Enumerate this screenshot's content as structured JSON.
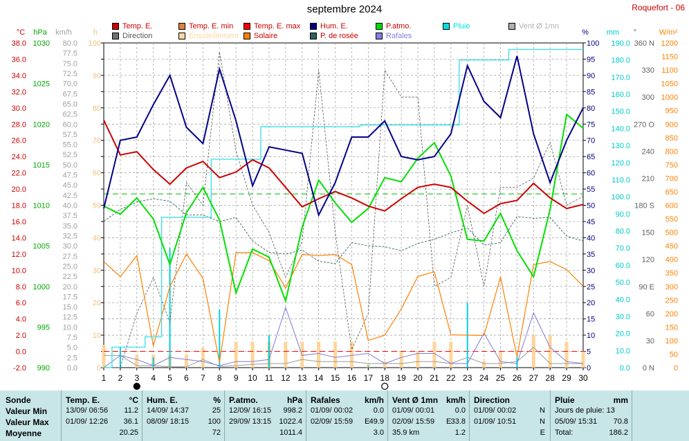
{
  "header": {
    "title": "septembre 2024",
    "station": "Roquefort - 06"
  },
  "legend": [
    {
      "label": "Temp. E.",
      "color": "#cc0000"
    },
    {
      "label": "Temp. E. min",
      "color": "#e08040"
    },
    {
      "label": "Temp. E. max",
      "color": "#ff0000"
    },
    {
      "label": "Hum. E.",
      "color": "#000080"
    },
    {
      "label": "P.atmo.",
      "color": "#00dd00"
    },
    {
      "label": "Pluie",
      "color": "#00e0e0"
    },
    {
      "label": "Vent Ø 1mn",
      "color": "#b0b0b0"
    },
    {
      "label": "Direction",
      "color": "#707070"
    },
    {
      "label": "Ensoleillement",
      "color": "#ffd8a0"
    },
    {
      "label": "Solaire",
      "color": "#ff8000"
    },
    {
      "label": "P. de rosée",
      "color": "#306060"
    },
    {
      "label": "Rafales",
      "color": "#8080e0"
    }
  ],
  "axes": {
    "temp": {
      "unit": "°C",
      "ticks": [
        "-2.0",
        "0.0",
        "2.0",
        "4.0",
        "6.0",
        "8.0",
        "10.0",
        "12.0",
        "14.0",
        "16.0",
        "18.0",
        "20.0",
        "22.0",
        "24.0",
        "26.0",
        "28.0",
        "30.0",
        "32.0",
        "34.0",
        "36.0",
        "38.0"
      ],
      "color": "#cc0000"
    },
    "pressure": {
      "unit": "hPa",
      "ticks": [
        "990",
        "995",
        "1000",
        "1005",
        "1010",
        "1015",
        "1020",
        "1025",
        "1030"
      ],
      "color": "#00aa00"
    },
    "wind": {
      "unit": "km/h",
      "ticks": [
        "0.0",
        "2.5",
        "5.0",
        "7.5",
        "10.0",
        "12.5",
        "15.0",
        "17.5",
        "20.0",
        "22.5",
        "25.0",
        "27.5",
        "30.0",
        "32.5",
        "35.0",
        "37.5",
        "40.0",
        "42.5",
        "45.0",
        "47.5",
        "50.0",
        "52.5",
        "55.0",
        "57.5",
        "60.0",
        "62.5",
        "65.0",
        "67.5",
        "70.0",
        "72.5",
        "75.0",
        "77.5",
        "80.0"
      ],
      "color": "#a0a0a0"
    },
    "sun": {
      "unit": "h",
      "ticks": [
        "0",
        "10",
        "20",
        "30",
        "40",
        "50",
        "60",
        "70",
        "80",
        "90",
        "100"
      ],
      "color": "#f0c080"
    },
    "humidity": {
      "unit": "%",
      "ticks": [
        "0",
        "5",
        "10",
        "15",
        "20",
        "25",
        "30",
        "35",
        "40",
        "45",
        "50",
        "55",
        "60",
        "65",
        "70",
        "75",
        "80",
        "85",
        "90",
        "95",
        "100"
      ],
      "color": "#000080"
    },
    "rain": {
      "unit": "mm",
      "ticks": [
        "0.0",
        "10.0",
        "20.0",
        "30.0",
        "40.0",
        "50.0",
        "60.0",
        "70.0",
        "80.0",
        "90.0",
        "100.0",
        "110.0",
        "120.0",
        "130.0",
        "140.0",
        "150.0",
        "160.0",
        "170.0",
        "180.0",
        "190.0"
      ],
      "color": "#00c8c8"
    },
    "direction": {
      "unit": "°",
      "ticks": [
        "0 N",
        "30",
        "60",
        "90 E",
        "120",
        "150",
        "180 S",
        "210",
        "240",
        "270 O",
        "300",
        "330",
        "360 N"
      ],
      "color": "#606060"
    },
    "solar": {
      "unit": "W/m²",
      "ticks": [
        "0",
        "50",
        "100",
        "150",
        "200",
        "250",
        "300",
        "350",
        "400",
        "450",
        "500",
        "550",
        "600",
        "650",
        "700",
        "750",
        "800",
        "850",
        "900",
        "950",
        "1000",
        "1050",
        "1100",
        "1150",
        "1200"
      ],
      "color": "#ff8000"
    },
    "days": [
      "1",
      "2",
      "3",
      "4",
      "5",
      "6",
      "7",
      "8",
      "9",
      "10",
      "11",
      "12",
      "13",
      "14",
      "15",
      "16",
      "17",
      "18",
      "19",
      "20",
      "21",
      "22",
      "23",
      "24",
      "25",
      "26",
      "27",
      "28",
      "29",
      "30"
    ]
  },
  "chart_data": {
    "type": "line",
    "title": "septembre 2024",
    "x": [
      1,
      2,
      3,
      4,
      5,
      6,
      7,
      8,
      9,
      10,
      11,
      12,
      13,
      14,
      15,
      16,
      17,
      18,
      19,
      20,
      21,
      22,
      23,
      24,
      25,
      26,
      27,
      28,
      29,
      30
    ],
    "xlim": [
      1,
      30
    ],
    "grid": true,
    "legend_position": "top",
    "series": [
      {
        "name": "Temp. E.",
        "unit": "°C",
        "values": [
          28.5,
          24.2,
          24.6,
          22.4,
          20.6,
          22.6,
          23.4,
          21.4,
          22.1,
          23.6,
          22.6,
          20.2,
          17.8,
          18.8,
          19.7,
          18.9,
          17.9,
          17.3,
          18.8,
          20.2,
          20.6,
          20.2,
          18.5,
          17.0,
          18.2,
          18.6,
          20.7,
          18.9,
          17.6,
          18.1
        ]
      },
      {
        "name": "Hum. E.",
        "unit": "%",
        "values": [
          49,
          70,
          71,
          81,
          90,
          74,
          69,
          92,
          76,
          56,
          68,
          67,
          66,
          47,
          57,
          71,
          71,
          76,
          65,
          64,
          65,
          72,
          93,
          82,
          77,
          96,
          72,
          57,
          70,
          80
        ]
      },
      {
        "name": "P.atmo.",
        "unit": "hPa",
        "values": [
          1009.9,
          1008.9,
          1010.9,
          1008.3,
          1002.7,
          1009.1,
          1012.2,
          1008.2,
          999.2,
          1004.6,
          1003.6,
          998.2,
          1007.3,
          1013.1,
          1010.3,
          1007.9,
          1009.6,
          1013.4,
          1012.9,
          1015.8,
          1017.7,
          1013.6,
          1005.8,
          1005.6,
          1009.0,
          1004.4,
          1001.2,
          1009.5,
          1021.2,
          1019.5
        ]
      },
      {
        "name": "Pluie",
        "unit": "mm",
        "values": [
          0,
          12,
          12,
          18,
          88,
          88,
          88,
          122,
          122,
          122,
          141,
          141,
          141,
          141,
          141,
          141,
          142,
          142,
          142,
          142,
          142,
          142,
          180,
          180,
          180,
          186.2,
          186.2,
          186.2,
          186.2,
          186.2
        ]
      },
      {
        "name": "Solaire",
        "unit": "W/m²",
        "values": [
          392,
          336,
          414,
          80,
          300,
          420,
          330,
          20,
          425,
          425,
          395,
          295,
          418,
          414,
          418,
          381,
          100,
          120,
          217,
          337,
          354,
          121,
          120,
          119,
          335,
          39,
          381,
          392,
          362,
          301
        ]
      },
      {
        "name": "P. de rosée",
        "unit": "°C",
        "values": [
          16.0,
          17.5,
          18.4,
          18.8,
          18.5,
          16.8,
          16.8,
          16.0,
          16.5,
          13.6,
          12.2,
          12.0,
          12.5,
          11.1,
          10.8,
          13.4,
          13.0,
          12.9,
          12.4,
          13.3,
          13.8,
          14.6,
          15.2,
          13.1,
          13.4,
          16.6,
          16.4,
          16.5,
          14.2,
          13.6
        ]
      },
      {
        "name": "Vent Ø 1mn",
        "unit": "km/h",
        "values": [
          3.0,
          3.0,
          0.5,
          0.5,
          0.2,
          0.2,
          2.0,
          0.3,
          0.5,
          0.8,
          1.0,
          1.0,
          2.0,
          1.5,
          1.5,
          1.5,
          1.0,
          1.0,
          1.0,
          1.5,
          1.5,
          1.0,
          2.5,
          1.0,
          1.0,
          1.5,
          5.0,
          1.0,
          1.0,
          1.0
        ]
      },
      {
        "name": "Rafales",
        "unit": "km/h",
        "values": [
          0,
          3.0,
          2.0,
          0.5,
          2.5,
          2.0,
          1.5,
          0.5,
          1.5,
          1.5,
          2.0,
          14.8,
          3.0,
          3.5,
          2.5,
          3.0,
          3.5,
          1.0,
          2.5,
          3.5,
          3.5,
          1.0,
          1.0,
          8.5,
          1.5,
          1.0,
          13.5,
          5.0,
          1.5,
          1.0
        ]
      },
      {
        "name": "Direction",
        "unit": "°",
        "values": [
          0,
          0,
          60,
          100,
          50,
          205,
          180,
          350,
          240,
          180,
          150,
          100,
          140,
          330,
          150,
          20,
          60,
          330,
          300,
          300,
          90,
          100,
          180,
          90,
          200,
          200,
          210,
          250,
          180,
          190
        ]
      }
    ],
    "bars": {
      "name": "Ensoleillement",
      "unit": "h",
      "values": [
        7,
        0,
        4,
        4,
        4,
        4,
        6,
        0,
        8,
        8,
        8,
        8,
        8,
        8,
        8,
        8,
        1,
        2,
        5,
        5,
        8,
        8,
        0,
        2,
        5,
        0,
        10,
        10,
        8,
        5
      ]
    },
    "references": [
      {
        "name": "P.atmo. moyenne",
        "unit": "hPa",
        "value": 1011.4,
        "style": "dashed",
        "color": "#00bb00"
      },
      {
        "name": "Temp. 0°C",
        "unit": "°C",
        "value": 0.0,
        "style": "dashed",
        "color": "#ff0000"
      }
    ],
    "markers": [
      {
        "day": 3,
        "symbol": "new-moon"
      },
      {
        "day": 18,
        "symbol": "full-moon"
      }
    ]
  },
  "stats": {
    "rows": [
      "Sonde",
      "Valeur Min",
      "Valeur Max",
      "Moyenne"
    ],
    "temp": {
      "title": "Temp. E.",
      "unit": "°C",
      "min_date": "13/09/ 06:56",
      "min": "11.2",
      "max_date": "01/09/ 12:26",
      "max": "36.1",
      "avg": "20.25"
    },
    "hum": {
      "title": "Hum. E.",
      "unit": "%",
      "min_date": "14/09/ 14:37",
      "min": "25",
      "max_date": "08/09/ 18:15",
      "max": "100",
      "avg": "72"
    },
    "press": {
      "title": "P.atmo.",
      "unit": "hPa",
      "min_date": "12/09/ 16:15",
      "min": "998.2",
      "max_date": "29/09/ 13:15",
      "max": "1022.4",
      "avg": "1011.4"
    },
    "gust": {
      "title": "Rafales",
      "unit": "km/h",
      "min_date": "01/09/ 00:02",
      "min": "0.0",
      "max_date": "02/09/ 15:59",
      "max_dir": "E",
      "max": "49.9",
      "avg": "3.0"
    },
    "wind": {
      "title": "Vent Ø 1mn",
      "unit": "km/h",
      "min_date": "01/09/ 00:01",
      "min": "0.0",
      "max_date": "02/09/ 15:59",
      "max_dir": "E",
      "max": "33.8",
      "dist": "35.9 km",
      "avg": "1.2"
    },
    "dir": {
      "title": "Direction",
      "min_date": "01/09/ 00:02",
      "min_dir": "N",
      "max_date": "01/09/ 10:51",
      "max_dir": "N",
      "avg_dir": "E"
    },
    "rain": {
      "title": "Pluie",
      "unit": "mm",
      "days_label": "Jours de pluie: 13",
      "max_date": "05/09/ 15:31",
      "max": "70.8",
      "total_label": "Total:",
      "total": "186.2"
    }
  }
}
